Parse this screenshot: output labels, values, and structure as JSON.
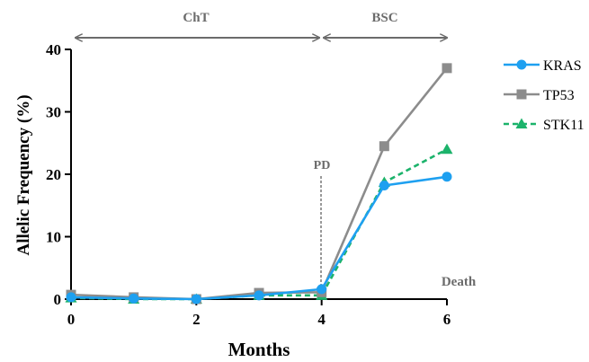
{
  "chart_data": {
    "type": "line",
    "xlabel": "Months",
    "ylabel": "Allelic Frequency (%)",
    "xlim": [
      0,
      6
    ],
    "ylim": [
      0,
      40
    ],
    "x_ticks": [
      "0",
      "2",
      "4",
      "6"
    ],
    "y_ticks": [
      "0",
      "10",
      "20",
      "30",
      "40"
    ],
    "grid": false,
    "legend_position": "right",
    "series": [
      {
        "name": "KRAS",
        "color": "#1EA0F0",
        "marker": "circle",
        "dash": "solid",
        "x": [
          0,
          1,
          2,
          3,
          4,
          5,
          6
        ],
        "y": [
          0.3,
          0.1,
          0.0,
          0.6,
          1.6,
          18.2,
          19.6
        ]
      },
      {
        "name": "TP53",
        "color": "#8C8C8C",
        "marker": "square",
        "dash": "solid",
        "x": [
          0,
          1,
          2,
          3,
          4,
          5,
          6
        ],
        "y": [
          0.7,
          0.3,
          0.0,
          1.0,
          1.1,
          24.5,
          37.0
        ]
      },
      {
        "name": "STK11",
        "color": "#1CB36B",
        "marker": "triangle",
        "dash": "dashed",
        "x": [
          0,
          1,
          2,
          3,
          4,
          5,
          6
        ],
        "y": [
          0.2,
          0.0,
          0.0,
          0.6,
          0.6,
          18.7,
          24.0
        ]
      }
    ],
    "annotations": {
      "cht": {
        "text": "ChT",
        "from": 0,
        "to": 4
      },
      "bsc": {
        "text": "BSC",
        "from": 4,
        "to": 6
      },
      "pd": {
        "text": "PD",
        "x": 4
      },
      "death": {
        "text": "Death",
        "x": 6
      }
    }
  }
}
